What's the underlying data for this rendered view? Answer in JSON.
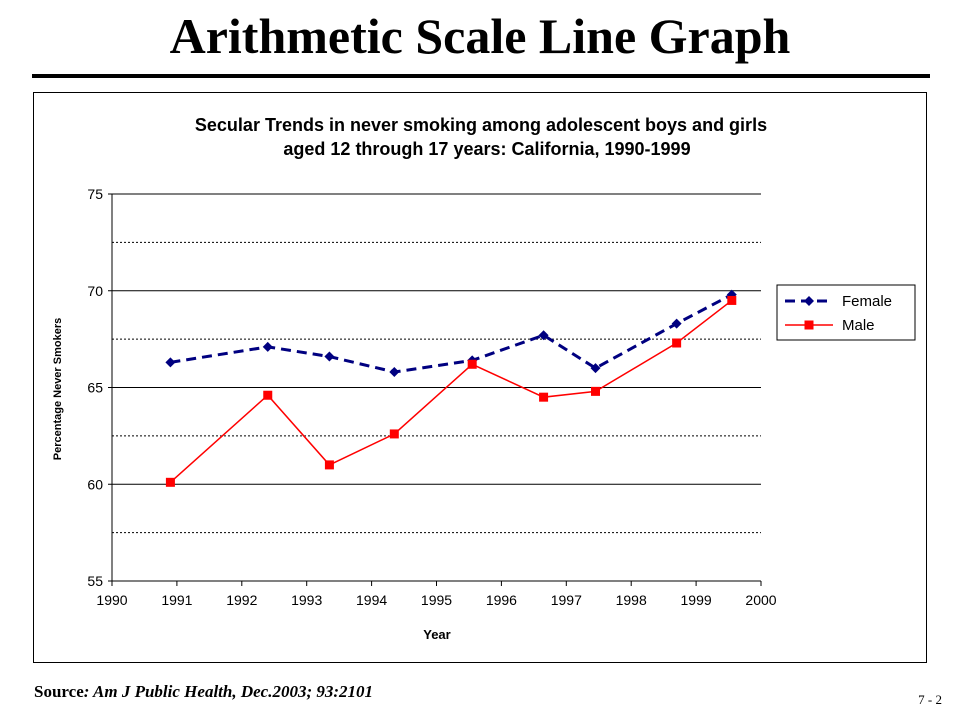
{
  "slide": {
    "title": "Arithmetic Scale Line Graph",
    "source_label": "Source",
    "source_citation": ": Am J Public Health, Dec.2003; 93:2101",
    "page_number": "7 - 2"
  },
  "chart_data": {
    "type": "line",
    "title_line1": "Secular Trends in never smoking among adolescent boys and girls",
    "title_line2": "aged 12 through 17 years: California, 1990-1999",
    "xlabel": "Year",
    "ylabel": "Percentage Never Smokers",
    "xlim": [
      1990,
      2000
    ],
    "ylim": [
      55,
      75
    ],
    "x_ticks": [
      1990,
      1991,
      1992,
      1993,
      1994,
      1995,
      1996,
      1997,
      1998,
      1999,
      2000
    ],
    "y_ticks": [
      55,
      60,
      65,
      70,
      75
    ],
    "y_minor_dotted": [
      57.5,
      62.5,
      67.5,
      72.5
    ],
    "grid": true,
    "legend_position": "right",
    "series": [
      {
        "name": "Female",
        "color": "#000080",
        "marker": "diamond",
        "line_style": "dashed",
        "x": [
          1990.9,
          1992.4,
          1993.35,
          1994.35,
          1995.55,
          1996.65,
          1997.45,
          1998.7,
          1999.55
        ],
        "y": [
          66.3,
          67.1,
          66.6,
          65.8,
          66.4,
          67.7,
          66.0,
          68.3,
          69.8
        ]
      },
      {
        "name": "Male",
        "color": "#ff0000",
        "marker": "square",
        "line_style": "solid",
        "x": [
          1990.9,
          1992.4,
          1993.35,
          1994.35,
          1995.55,
          1996.65,
          1997.45,
          1998.7,
          1999.55
        ],
        "y": [
          60.1,
          64.6,
          61.0,
          62.6,
          66.2,
          64.5,
          64.8,
          67.3,
          69.5
        ]
      }
    ]
  }
}
